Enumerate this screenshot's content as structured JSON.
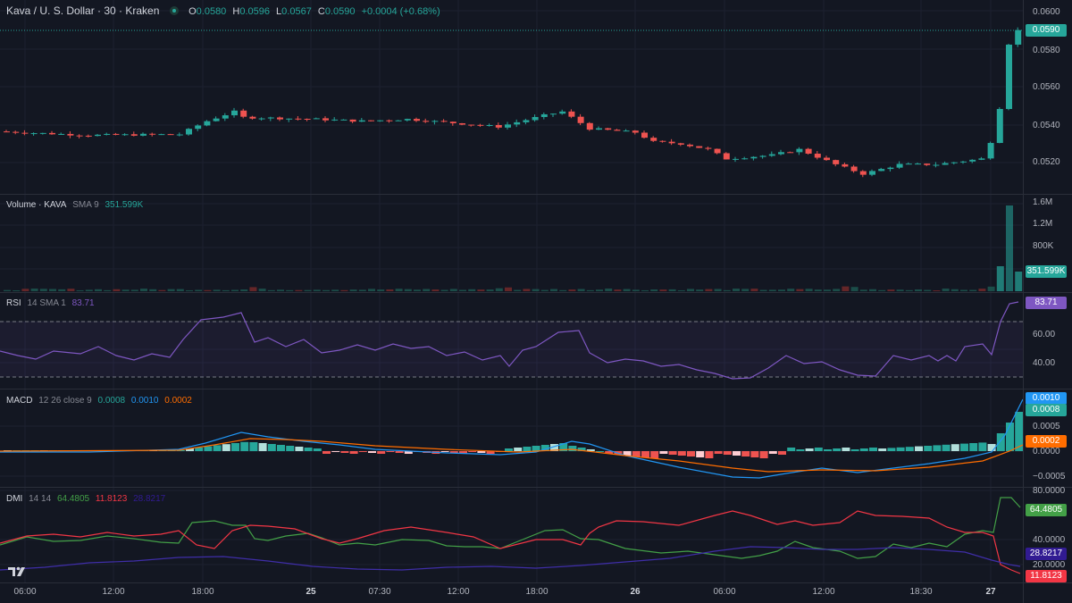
{
  "header": {
    "symbol": "Kava / U. S. Dollar · 30 · Kraken",
    "o_label": "O",
    "o_val": "0.0580",
    "h_label": "H",
    "h_val": "0.0596",
    "l_label": "L",
    "l_val": "0.0567",
    "c_label": "C",
    "c_val": "0.0590",
    "change": "+0.0004 (+0.68%)"
  },
  "price_axis": [
    "0.0600",
    "0.0580",
    "0.0560",
    "0.0540",
    "0.0520"
  ],
  "last_price": "0.0590",
  "volume": {
    "title": "Volume · KAVA",
    "sma": "SMA 9",
    "value": "351.599K",
    "axis": [
      "1.6M",
      "1.2M",
      "800K"
    ],
    "tag": "351.599K"
  },
  "rsi": {
    "title": "RSI",
    "params": "14 SMA 1",
    "value": "83.71",
    "axis": [
      "60.00",
      "40.00"
    ],
    "tag": "83.71"
  },
  "macd": {
    "title": "MACD",
    "params": "12 26 close 9",
    "v1": "0.0008",
    "v2": "0.0010",
    "v3": "0.0002",
    "axis": [
      "0.0005",
      "0.0000",
      "−0.0005"
    ],
    "tag_macd": "0.0010",
    "tag_signal": "0.0008",
    "tag_hist": "0.0002"
  },
  "dmi": {
    "title": "DMI",
    "params": "14 14",
    "adx": "64.4805",
    "plus": "11.8123",
    "minus": "28.8217",
    "axis": [
      "80.0000",
      "40.0000",
      "20.0000"
    ],
    "tag_adx": "64.4805",
    "tag_minus": "28.8217",
    "tag_plus": "11.8123"
  },
  "time_axis": [
    {
      "label": "06:00",
      "bold": false
    },
    {
      "label": "12:00",
      "bold": false
    },
    {
      "label": "18:00",
      "bold": false
    },
    {
      "label": "25",
      "bold": true
    },
    {
      "label": "07:30",
      "bold": false
    },
    {
      "label": "12:00",
      "bold": false
    },
    {
      "label": "18:00",
      "bold": false
    },
    {
      "label": "26",
      "bold": true
    },
    {
      "label": "06:00",
      "bold": false
    },
    {
      "label": "12:00",
      "bold": false
    },
    {
      "label": "18:30",
      "bold": false
    },
    {
      "label": "27",
      "bold": true
    }
  ],
  "colors": {
    "up": "#26a69a",
    "down": "#ef5350",
    "rsi": "#7e57c2",
    "macd": "#2196f3",
    "signal": "#ff6d00",
    "adx": "#43a047",
    "plus_di": "#f23645",
    "minus_di": "#311b92"
  },
  "chart_data": {
    "type": "candlestick",
    "title": "Kava / U. S. Dollar · 30 · Kraken",
    "ylim": [
      0.051,
      0.0603
    ],
    "last": 0.059
  }
}
